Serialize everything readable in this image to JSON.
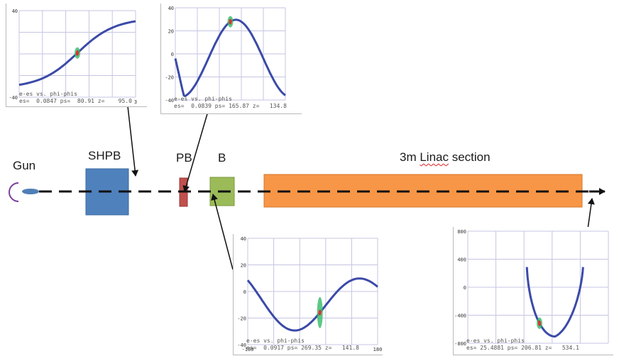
{
  "labels": {
    "gun": "Gun",
    "shpb": "SHPB",
    "pb": "PB",
    "b": "B",
    "linac_prefix": "3m ",
    "linac_word": "Linac",
    "linac_suffix": " section"
  },
  "colors": {
    "gun_arc": "#7a3f98",
    "gun_body": "#4f7fb7",
    "shpb": "#4f81bd",
    "pb": "#c0504d",
    "b": "#9bbb59",
    "linac": "#f79646",
    "trace": "#3b4aa8",
    "core_green": "#33bb66",
    "core_red": "#e03030",
    "grid": "#c5c5e3"
  },
  "plots": [
    {
      "id": "plot-shpb",
      "ticks_y": [
        "40",
        "",
        "",
        "",
        "-40"
      ],
      "ticks_x": [
        "",
        "",
        "",
        "",
        "",
        "3"
      ],
      "caption1": "e-es vs. phi-phis",
      "caption2": "es=  0.0847 ps=  80.91 z=    95.0",
      "shape": "s_curve"
    },
    {
      "id": "plot-pb",
      "ticks_y": [
        "40",
        "20",
        "0",
        "-20",
        "-40"
      ],
      "ticks_x": [
        "",
        "",
        "",
        "",
        "",
        ""
      ],
      "caption1": "e-es vs. phi-phis",
      "caption2": "es=  0.0839 ps= 165.87 z=   134.8",
      "shape": "wave"
    },
    {
      "id": "plot-b",
      "ticks_y": [
        "40",
        "20",
        "0",
        "-20",
        "-40"
      ],
      "ticks_x": [
        "-180",
        "",
        "",
        "",
        "",
        "180"
      ],
      "caption1": "e-es vs. phi-phis",
      "caption2": "es=  0.0917 ps= 269.35 z=   141.8",
      "shape": "bunched"
    },
    {
      "id": "plot-linac",
      "ticks_y": [
        "800",
        "400",
        "0",
        "-400",
        "-800"
      ],
      "ticks_x": [
        "",
        "",
        "",
        "",
        "",
        ""
      ],
      "caption1": "e-es vs. phi-phis",
      "caption2": "es= 25.4881 ps= 206.81 z=   534.1",
      "shape": "arch"
    }
  ]
}
